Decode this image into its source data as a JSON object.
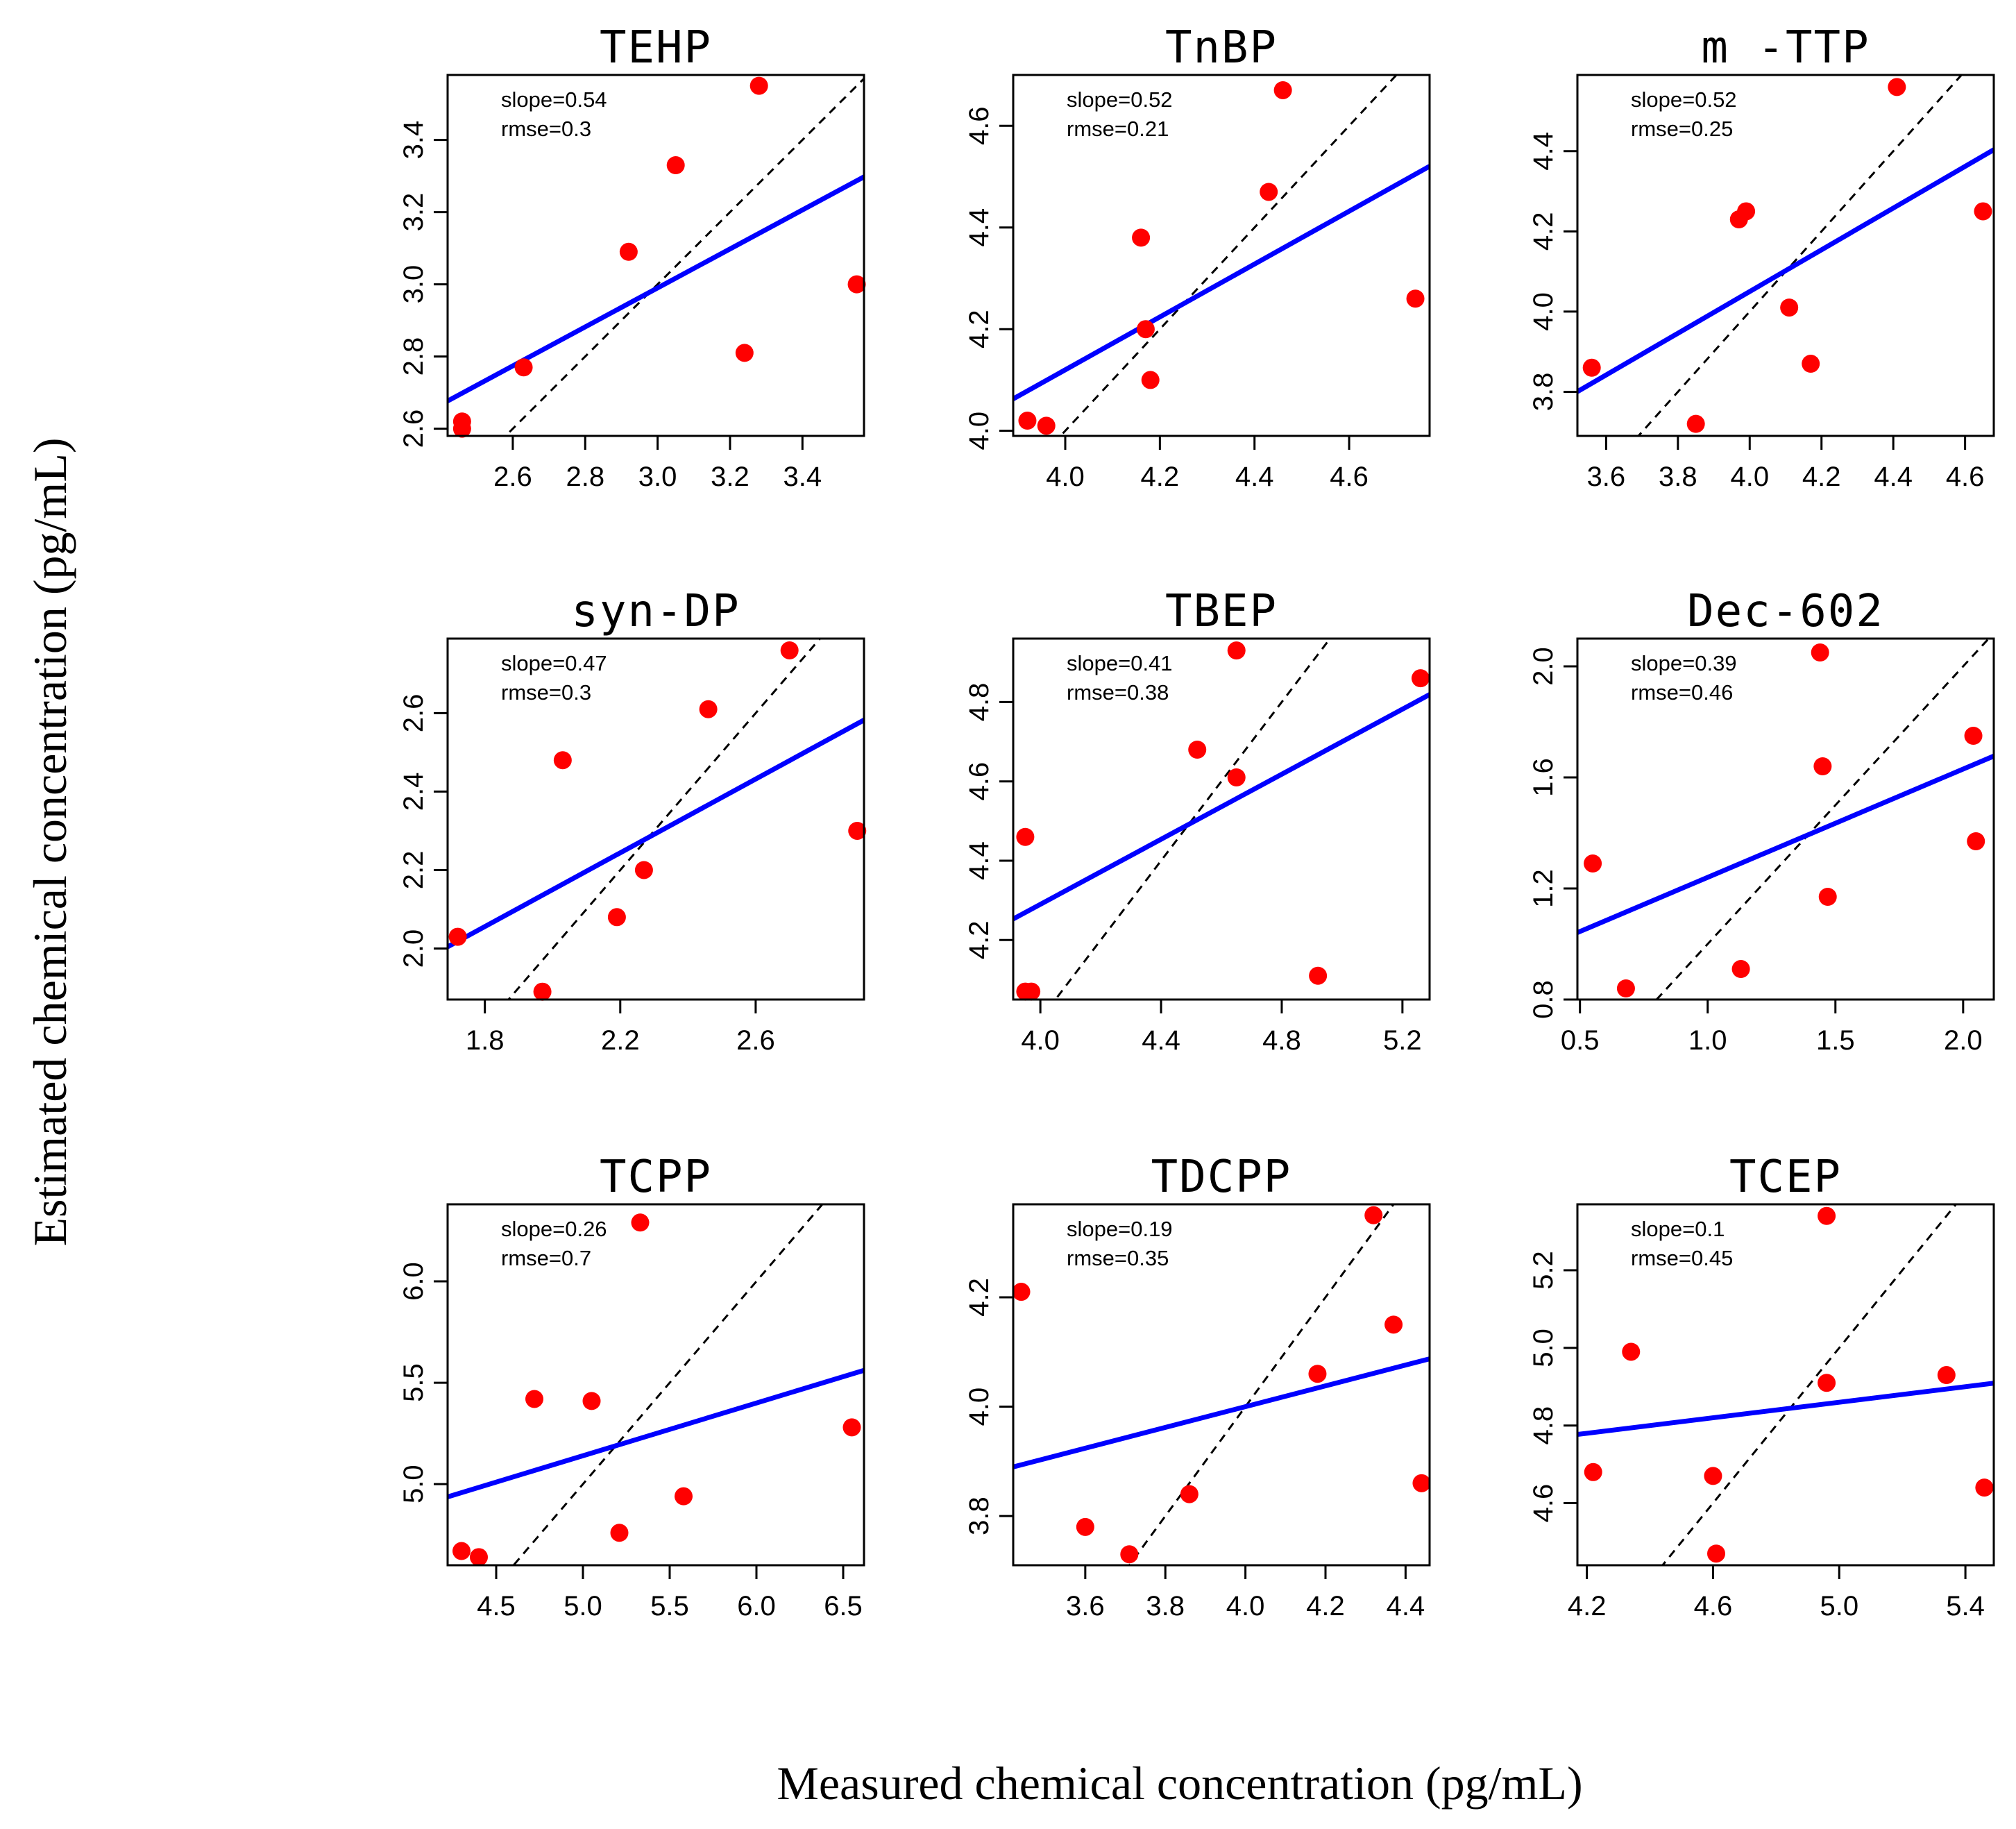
{
  "figure": {
    "ylabel": "Estimated chemical concentration (pg/mL)",
    "xlabel": "Measured chemical concentration (pg/mL)"
  },
  "colors": {
    "points": "#ff0000",
    "fit": "#0000ff",
    "identity": "#000000"
  },
  "chart_data": [
    {
      "type": "scatter",
      "title": "TEHP",
      "xlim": [
        2.42,
        3.57
      ],
      "ylim": [
        2.58,
        3.58
      ],
      "xticks": [
        2.6,
        2.8,
        3.0,
        3.2,
        3.4
      ],
      "xtick_labels": [
        "2.6",
        "2.8",
        "3.0",
        "3.2",
        "3.4"
      ],
      "yticks": [
        2.6,
        2.8,
        3.0,
        3.2,
        3.4
      ],
      "ytick_labels": [
        "2.6",
        "2.8",
        "3.0",
        "3.2",
        "3.4"
      ],
      "points": {
        "x": [
          2.46,
          2.46,
          2.63,
          2.92,
          3.05,
          3.24,
          3.28,
          3.55
        ],
        "y": [
          2.62,
          2.6,
          2.77,
          3.09,
          3.33,
          2.81,
          3.55,
          3.0
        ]
      },
      "fit": {
        "slope": 0.54,
        "intercept": 1.37
      },
      "annotation": {
        "slope": "slope=0.54",
        "rmse": "rmse=0.3"
      }
    },
    {
      "type": "scatter",
      "title": "TnBP",
      "xlim": [
        3.89,
        4.77
      ],
      "ylim": [
        3.99,
        4.7
      ],
      "xticks": [
        4.0,
        4.2,
        4.4,
        4.6
      ],
      "xtick_labels": [
        "4.0",
        "4.2",
        "4.4",
        "4.6"
      ],
      "yticks": [
        4.0,
        4.2,
        4.4,
        4.6
      ],
      "ytick_labels": [
        "4.0",
        "4.2",
        "4.4",
        "4.6"
      ],
      "points": {
        "x": [
          3.92,
          3.96,
          4.16,
          4.18,
          4.17,
          4.43,
          4.46,
          4.74
        ],
        "y": [
          4.02,
          4.01,
          4.38,
          4.1,
          4.2,
          4.47,
          4.67,
          4.26
        ]
      },
      "fit": {
        "slope": 0.52,
        "intercept": 2.04
      },
      "annotation": {
        "slope": "slope=0.52",
        "rmse": "rmse=0.21"
      }
    },
    {
      "type": "scatter",
      "title": "m -TTP",
      "xlim": [
        3.52,
        4.68
      ],
      "ylim": [
        3.69,
        4.59
      ],
      "xticks": [
        3.6,
        3.8,
        4.0,
        4.2,
        4.4,
        4.6
      ],
      "xtick_labels": [
        "3.6",
        "3.8",
        "4.0",
        "4.2",
        "4.4",
        "4.6"
      ],
      "yticks": [
        3.8,
        4.0,
        4.2,
        4.4
      ],
      "ytick_labels": [
        "3.8",
        "4.0",
        "4.2",
        "4.4"
      ],
      "points": {
        "x": [
          3.56,
          3.85,
          3.97,
          3.99,
          4.11,
          4.17,
          4.41,
          4.65
        ],
        "y": [
          3.86,
          3.72,
          4.23,
          4.25,
          4.01,
          3.87,
          4.56,
          4.25
        ]
      },
      "fit": {
        "slope": 0.52,
        "intercept": 1.97
      },
      "annotation": {
        "slope": "slope=0.52",
        "rmse": "rmse=0.25"
      }
    },
    {
      "type": "scatter",
      "title": "syn-DP",
      "xlim": [
        1.69,
        2.92
      ],
      "ylim": [
        1.87,
        2.79
      ],
      "xticks": [
        1.8,
        2.2,
        2.6
      ],
      "xtick_labels": [
        "1.8",
        "2.2",
        "2.6"
      ],
      "yticks": [
        2.0,
        2.2,
        2.4,
        2.6
      ],
      "ytick_labels": [
        "2.0",
        "2.2",
        "2.4",
        "2.6"
      ],
      "points": {
        "x": [
          1.72,
          1.97,
          2.03,
          2.19,
          2.27,
          2.46,
          2.7,
          2.9
        ],
        "y": [
          2.03,
          1.89,
          2.48,
          2.08,
          2.2,
          2.61,
          2.76,
          2.3
        ]
      },
      "fit": {
        "slope": 0.47,
        "intercept": 1.21
      },
      "annotation": {
        "slope": "slope=0.47",
        "rmse": "rmse=0.3"
      }
    },
    {
      "type": "scatter",
      "title": "TBEP",
      "xlim": [
        3.91,
        5.29
      ],
      "ylim": [
        4.05,
        4.96
      ],
      "xticks": [
        4.0,
        4.4,
        4.8,
        5.2
      ],
      "xtick_labels": [
        "4.0",
        "4.4",
        "4.8",
        "5.2"
      ],
      "yticks": [
        4.2,
        4.4,
        4.6,
        4.8
      ],
      "ytick_labels": [
        "4.2",
        "4.4",
        "4.6",
        "4.8"
      ],
      "points": {
        "x": [
          3.95,
          3.95,
          3.97,
          4.52,
          4.65,
          4.65,
          4.92,
          5.26
        ],
        "y": [
          4.46,
          4.07,
          4.07,
          4.68,
          4.61,
          4.93,
          4.11,
          4.86
        ]
      },
      "fit": {
        "slope": 0.41,
        "intercept": 2.65
      },
      "annotation": {
        "slope": "slope=0.41",
        "rmse": "rmse=0.38"
      }
    },
    {
      "type": "scatter",
      "title": "Dec-602",
      "xlim": [
        0.49,
        2.12
      ],
      "ylim": [
        0.8,
        2.1
      ],
      "xticks": [
        0.5,
        1.0,
        1.5,
        2.0
      ],
      "xtick_labels": [
        "0.5",
        "1.0",
        "1.5",
        "2.0"
      ],
      "yticks": [
        0.8,
        1.2,
        1.6,
        2.0
      ],
      "ytick_labels": [
        "0.8",
        "1.2",
        "1.6",
        "2.0"
      ],
      "points": {
        "x": [
          0.55,
          0.68,
          1.13,
          1.44,
          1.45,
          1.47,
          2.04,
          2.05
        ],
        "y": [
          1.29,
          0.84,
          0.91,
          2.05,
          1.64,
          1.17,
          1.75,
          1.37
        ]
      },
      "fit": {
        "slope": 0.39,
        "intercept": 0.85
      },
      "annotation": {
        "slope": "slope=0.39",
        "rmse": "rmse=0.46"
      }
    },
    {
      "type": "scatter",
      "title": "TCPP",
      "xlim": [
        4.22,
        6.62
      ],
      "ylim": [
        4.6,
        6.38
      ],
      "xticks": [
        4.5,
        5.0,
        5.5,
        6.0,
        6.5
      ],
      "xtick_labels": [
        "4.5",
        "5.0",
        "5.5",
        "6.0",
        "6.5"
      ],
      "yticks": [
        5.0,
        5.5,
        6.0
      ],
      "ytick_labels": [
        "5.0",
        "5.5",
        "6.0"
      ],
      "points": {
        "x": [
          4.3,
          4.4,
          4.72,
          5.05,
          5.21,
          5.33,
          5.58,
          6.55
        ],
        "y": [
          4.67,
          4.64,
          5.42,
          5.41,
          4.76,
          6.29,
          4.94,
          5.28
        ]
      },
      "fit": {
        "slope": 0.26,
        "intercept": 3.84
      },
      "annotation": {
        "slope": "slope=0.26",
        "rmse": "rmse=0.7"
      }
    },
    {
      "type": "scatter",
      "title": "TDCPP",
      "xlim": [
        3.42,
        4.46
      ],
      "ylim": [
        3.71,
        4.37
      ],
      "xticks": [
        3.6,
        3.8,
        4.0,
        4.2,
        4.4
      ],
      "xtick_labels": [
        "3.6",
        "3.8",
        "4.0",
        "4.2",
        "4.4"
      ],
      "yticks": [
        3.8,
        4.0,
        4.2
      ],
      "ytick_labels": [
        "3.8",
        "4.0",
        "4.2"
      ],
      "points": {
        "x": [
          3.44,
          3.6,
          3.71,
          3.86,
          4.18,
          4.32,
          4.37,
          4.44
        ],
        "y": [
          4.21,
          3.78,
          3.73,
          3.84,
          4.06,
          4.35,
          4.15,
          3.86
        ]
      },
      "fit": {
        "slope": 0.19,
        "intercept": 3.24
      },
      "annotation": {
        "slope": "slope=0.19",
        "rmse": "rmse=0.35"
      }
    },
    {
      "type": "scatter",
      "title": "TCEP",
      "xlim": [
        4.17,
        5.49
      ],
      "ylim": [
        4.44,
        5.37
      ],
      "xticks": [
        4.2,
        4.6,
        5.0,
        5.4
      ],
      "xtick_labels": [
        "4.2",
        "4.6",
        "5.0",
        "5.4"
      ],
      "yticks": [
        4.6,
        4.8,
        5.0,
        5.2
      ],
      "ytick_labels": [
        "4.6",
        "4.8",
        "5.0",
        "5.2"
      ],
      "points": {
        "x": [
          4.22,
          4.34,
          4.6,
          4.61,
          4.96,
          4.96,
          5.34,
          5.46
        ],
        "y": [
          4.68,
          4.99,
          4.67,
          4.47,
          5.34,
          4.91,
          4.93,
          4.64
        ]
      },
      "fit": {
        "slope": 0.1,
        "intercept": 4.36
      },
      "annotation": {
        "slope": "slope=0.1",
        "rmse": "rmse=0.45"
      }
    }
  ]
}
